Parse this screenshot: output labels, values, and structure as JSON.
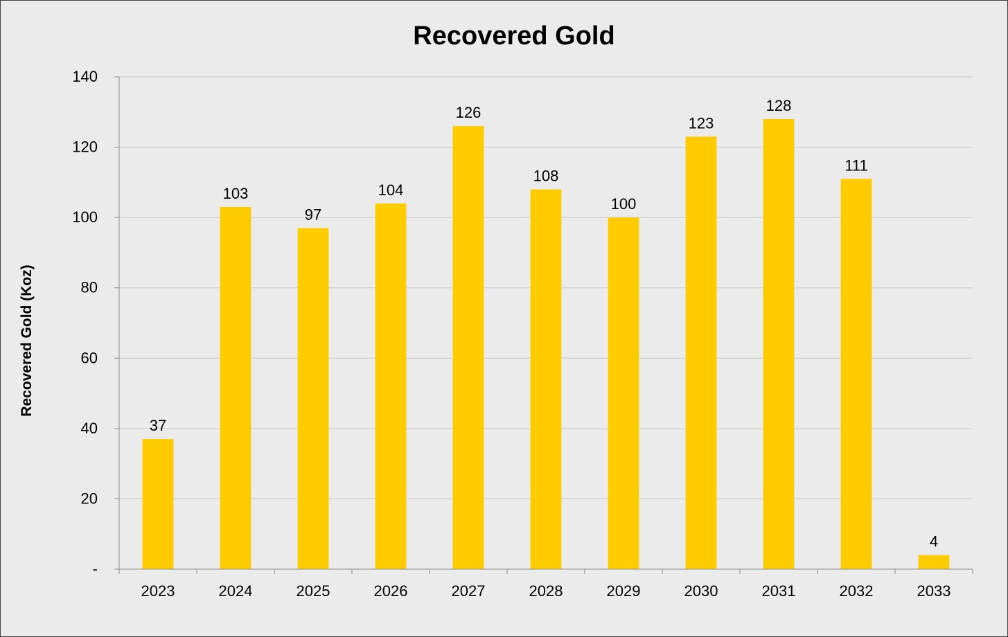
{
  "chart_data": {
    "type": "bar",
    "title": "Recovered Gold",
    "xlabel": "",
    "ylabel": "Recovered Gold (Koz)",
    "categories": [
      "2023",
      "2024",
      "2025",
      "2026",
      "2027",
      "2028",
      "2029",
      "2030",
      "2031",
      "2032",
      "2033"
    ],
    "values": [
      37,
      103,
      97,
      104,
      126,
      108,
      100,
      123,
      128,
      111,
      4
    ],
    "data_labels": [
      "37",
      "103",
      "97",
      "104",
      "126",
      "108",
      "100",
      "123",
      "128",
      "111",
      "4"
    ],
    "yticks": [
      0,
      20,
      40,
      60,
      80,
      100,
      120,
      140
    ],
    "ytick_labels": [
      "-",
      "20",
      "40",
      "60",
      "80",
      "100",
      "120",
      "140"
    ],
    "ylim": [
      0,
      140
    ],
    "grid": true,
    "legend": "none",
    "colors": {
      "bar": "#ffcc00",
      "background": "#ebebeb",
      "grid": "#c8c8c8",
      "axis": "#8c8c8c",
      "border": "#404040"
    }
  }
}
